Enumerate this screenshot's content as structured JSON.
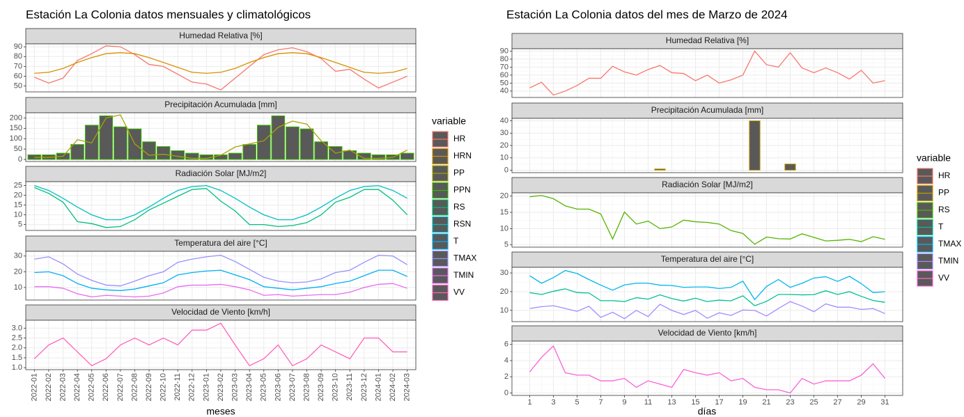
{
  "chart_data": [
    {
      "type": "facet",
      "title": "Estación La Colonia datos mensuales y climatológicos",
      "x_label": "meses",
      "categories": [
        "2022-01",
        "2022-02",
        "2022-03",
        "2022-04",
        "2022-05",
        "2022-06",
        "2022-07",
        "2022-08",
        "2022-09",
        "2022-10",
        "2022-11",
        "2022-12",
        "2023-01",
        "2023-02",
        "2023-03",
        "2023-04",
        "2023-05",
        "2023-06",
        "2023-07",
        "2023-08",
        "2023-09",
        "2023-10",
        "2023-11",
        "2023-12",
        "2024-01",
        "2024-02",
        "2024-03"
      ],
      "legend_title": "variable",
      "legend": [
        {
          "name": "HR",
          "color": "#F8766D"
        },
        {
          "name": "HRN",
          "color": "#D89000"
        },
        {
          "name": "PP",
          "color": "#A3A500"
        },
        {
          "name": "PPN",
          "color": "#39B600"
        },
        {
          "name": "RS",
          "color": "#00BF7D"
        },
        {
          "name": "RSN",
          "color": "#00BFC4"
        },
        {
          "name": "T",
          "color": "#00B0F6"
        },
        {
          "name": "TMAX",
          "color": "#9590FF"
        },
        {
          "name": "TMIN",
          "color": "#E76BF3"
        },
        {
          "name": "VV",
          "color": "#FF62BC"
        }
      ],
      "facets": [
        {
          "title": "Humedad Relativa [%]",
          "ylim": [
            44,
            93
          ],
          "yticks": [
            50,
            60,
            70,
            80,
            90
          ],
          "series": [
            {
              "name": "HR",
              "type": "line",
              "color": "#F8766D",
              "values": [
                59,
                53,
                58,
                76,
                83,
                91,
                90,
                82,
                72,
                70,
                62,
                54,
                52,
                46,
                58,
                70,
                82,
                87,
                89,
                85,
                78,
                65,
                67,
                57,
                48,
                54,
                60
              ]
            },
            {
              "name": "HRN",
              "type": "line",
              "color": "#D89000",
              "values": [
                63,
                64,
                68,
                74,
                79,
                83,
                84,
                83,
                79,
                74,
                69,
                64,
                63,
                64,
                68,
                74,
                79,
                83,
                84,
                83,
                79,
                74,
                69,
                64,
                63,
                64,
                68
              ]
            }
          ]
        },
        {
          "title": "Precipitación Acumulada [mm]",
          "ylim": [
            -10,
            225
          ],
          "yticks": [
            0,
            50,
            100,
            150,
            200
          ],
          "series": [
            {
              "name": "PPN",
              "type": "bar",
              "color": "#39B600",
              "fill": "#595959",
              "values": [
                22,
                22,
                30,
                72,
                165,
                210,
                157,
                147,
                85,
                62,
                42,
                30,
                22,
                22,
                30,
                72,
                165,
                210,
                157,
                147,
                85,
                62,
                42,
                30,
                22,
                22,
                30
              ]
            },
            {
              "name": "PP",
              "type": "line",
              "color": "#A3A500",
              "values": [
                10,
                10,
                15,
                95,
                80,
                200,
                215,
                75,
                20,
                25,
                15,
                5,
                5,
                20,
                60,
                75,
                90,
                155,
                185,
                170,
                90,
                30,
                45,
                5,
                5,
                10,
                45
              ]
            }
          ]
        },
        {
          "title": "Radiación Solar [MJ/m2]",
          "ylim": [
            2,
            27
          ],
          "yticks": [
            5,
            10,
            15,
            20,
            25
          ],
          "series": [
            {
              "name": "RS",
              "type": "line",
              "color": "#00BF7D",
              "values": [
                24,
                21,
                16.5,
                6.5,
                5.5,
                3.5,
                4,
                7.5,
                12.5,
                16,
                19.5,
                23,
                23.5,
                17,
                12,
                5,
                5,
                4,
                4.5,
                6,
                10,
                16.5,
                19,
                23,
                23,
                17.5,
                10
              ]
            },
            {
              "name": "RSN",
              "type": "line",
              "color": "#00BFC4",
              "values": [
                25,
                22.5,
                18.5,
                14,
                10,
                7.5,
                7.5,
                10,
                14,
                18.5,
                22.5,
                24.5,
                25,
                22.5,
                18.5,
                14,
                10,
                7.5,
                7.5,
                10,
                14,
                18.5,
                22.5,
                24.5,
                25,
                22.5,
                18.5
              ]
            }
          ]
        },
        {
          "title": "Temperatura del aire [°C]",
          "ylim": [
            2,
            33
          ],
          "yticks": [
            10,
            20,
            30
          ],
          "series": [
            {
              "name": "T",
              "type": "line",
              "color": "#00B0F6",
              "values": [
                19.5,
                20,
                17.5,
                12.5,
                9.5,
                8.5,
                8,
                9,
                11,
                13,
                18,
                19.5,
                20.5,
                21,
                18,
                15,
                10.5,
                9.5,
                8.5,
                9.5,
                10.5,
                12.5,
                14,
                17.5,
                21,
                21,
                17
              ]
            },
            {
              "name": "TMAX",
              "type": "line",
              "color": "#9590FF",
              "values": [
                28,
                29.5,
                25,
                18.5,
                14.5,
                11.5,
                11,
                14,
                17.5,
                20,
                26,
                28,
                29.5,
                30.5,
                26.5,
                21.5,
                16.5,
                14,
                13,
                13.5,
                15.5,
                19.5,
                21,
                26,
                30.5,
                30,
                24.5
              ]
            },
            {
              "name": "TMIN",
              "type": "line",
              "color": "#E76BF3",
              "values": [
                10.5,
                10.5,
                9.5,
                6,
                4,
                5,
                4.5,
                4,
                4.5,
                6.5,
                10.5,
                11.5,
                11.5,
                12,
                10.5,
                8.5,
                5,
                5.5,
                4.5,
                5,
                5.5,
                5.5,
                7,
                10,
                12,
                12.5,
                9.5
              ]
            }
          ]
        },
        {
          "title": "Velocidad de Viento [km/h]",
          "ylim": [
            0.9,
            3.4
          ],
          "yticks": [
            {
              "value": 1,
              "label": "1.0"
            },
            1.5,
            {
              "value": 2,
              "label": "2.0"
            },
            2.5,
            {
              "value": 3,
              "label": "3.0"
            }
          ],
          "series": [
            {
              "name": "VV",
              "type": "line",
              "color": "#FF62BC",
              "values": [
                1.45,
                2.15,
                2.5,
                1.8,
                1.1,
                1.45,
                2.15,
                2.5,
                2.15,
                2.5,
                2.15,
                2.9,
                2.9,
                3.25,
                2.15,
                1.1,
                1.45,
                2.15,
                1.1,
                1.45,
                2.15,
                1.8,
                1.45,
                2.5,
                2.5,
                1.8,
                1.8
              ]
            }
          ]
        }
      ]
    },
    {
      "type": "facet",
      "title": "Estación La Colonia datos del mes de Marzo de 2024",
      "x_label": "días",
      "x": [
        1,
        2,
        3,
        4,
        5,
        6,
        7,
        8,
        9,
        10,
        11,
        12,
        13,
        14,
        15,
        16,
        17,
        18,
        19,
        20,
        21,
        22,
        23,
        24,
        25,
        26,
        27,
        28,
        29,
        30,
        31
      ],
      "xlim": [
        -0.5,
        32.5
      ],
      "xticks": [
        1,
        3,
        5,
        7,
        9,
        11,
        13,
        15,
        17,
        19,
        21,
        23,
        25,
        27,
        29,
        31
      ],
      "legend_title": "variable",
      "legend": [
        {
          "name": "HR",
          "color": "#F8766D"
        },
        {
          "name": "PP",
          "color": "#C49A00"
        },
        {
          "name": "RS",
          "color": "#53B400"
        },
        {
          "name": "T",
          "color": "#00C094"
        },
        {
          "name": "TMAX",
          "color": "#00B6EB"
        },
        {
          "name": "TMIN",
          "color": "#A58AFF"
        },
        {
          "name": "VV",
          "color": "#FB61D7"
        }
      ],
      "facets": [
        {
          "title": "Humedad Relativa [%]",
          "ylim": [
            32,
            93
          ],
          "yticks": [
            40,
            50,
            60,
            70,
            80,
            90
          ],
          "series": [
            {
              "name": "HR",
              "type": "line",
              "color": "#F8766D",
              "values": [
                44,
                51,
                35,
                40,
                47,
                56,
                56,
                71,
                64,
                60,
                67,
                72,
                63,
                62,
                53,
                60,
                50,
                54,
                60,
                90,
                73,
                70,
                88,
                69,
                63,
                69,
                63,
                55,
                66,
                50,
                53
              ]
            }
          ]
        },
        {
          "title": "Precipitación Acumulada [mm]",
          "ylim": [
            -2,
            42
          ],
          "yticks": [
            0,
            10,
            20,
            30,
            40
          ],
          "series": [
            {
              "name": "PP",
              "type": "bar",
              "color": "#C49A00",
              "fill": "#595959",
              "values": [
                0,
                0,
                0,
                0,
                0,
                0,
                0,
                0,
                0,
                0,
                0,
                1,
                0,
                0,
                0,
                0,
                0,
                0,
                0,
                40,
                0,
                0,
                5,
                0,
                0,
                0,
                0,
                0,
                0,
                0,
                0
              ]
            }
          ]
        },
        {
          "title": "Radiación Solar [MJ/m2]",
          "ylim": [
            4.3,
            21
          ],
          "yticks": [
            5,
            10,
            15,
            20
          ],
          "series": [
            {
              "name": "RS",
              "type": "line",
              "color": "#53B400",
              "values": [
                19.8,
                20.2,
                19.2,
                17,
                16,
                16,
                14.5,
                6.8,
                15.1,
                11.4,
                12.3,
                10,
                10.5,
                12.6,
                12.1,
                11.9,
                11.4,
                9.4,
                8.5,
                5.2,
                7.4,
                6.9,
                6.8,
                8.4,
                7.3,
                6.2,
                6.4,
                6.7,
                6,
                7.5,
                6.7
              ]
            }
          ]
        },
        {
          "title": "Temperatura del aire [°C]",
          "ylim": [
            4,
            33
          ],
          "yticks": [
            10,
            20,
            30
          ],
          "series": [
            {
              "name": "T",
              "type": "line",
              "color": "#00C094",
              "values": [
                19.5,
                18.5,
                20.2,
                21.5,
                19.5,
                19.3,
                15.2,
                15.2,
                14.7,
                16.8,
                16,
                18.3,
                16.3,
                15,
                16.5,
                14.7,
                15.5,
                15.1,
                17.8,
                12.5,
                14.8,
                18.5,
                18.5,
                18.3,
                18.4,
                20.5,
                18.5,
                20,
                17.5,
                15.3,
                14.3
              ]
            },
            {
              "name": "TMAX",
              "type": "line",
              "color": "#00B6EB",
              "values": [
                28.5,
                24.5,
                27.5,
                31.3,
                29.7,
                26.5,
                23.5,
                20.8,
                23.6,
                24.5,
                24.5,
                23.5,
                23.3,
                22.3,
                22.5,
                22.5,
                21.7,
                22.3,
                25.6,
                15.8,
                22.8,
                26.5,
                22.3,
                24.5,
                27.3,
                28,
                25.5,
                28.2,
                24.3,
                19.5,
                20
              ]
            },
            {
              "name": "TMIN",
              "type": "line",
              "color": "#A58AFF",
              "values": [
                11,
                12,
                12.5,
                11,
                9.5,
                12.2,
                6.3,
                9,
                5.6,
                10,
                6.7,
                13.3,
                10,
                7.8,
                10,
                5.8,
                8.7,
                7.3,
                10.2,
                10,
                7,
                11,
                14.7,
                12.3,
                9.3,
                13.5,
                11.7,
                11.7,
                10.5,
                11,
                8.3
              ]
            }
          ]
        },
        {
          "title": "Velocidad de Viento [km/h]",
          "ylim": [
            -0.3,
            6.4
          ],
          "yticks": [
            0,
            2,
            4,
            6
          ],
          "series": [
            {
              "name": "VV",
              "type": "line",
              "color": "#FB61D7",
              "values": [
                2.6,
                4.4,
                5.8,
                2.5,
                2.2,
                2.2,
                1.5,
                1.5,
                1.8,
                0.7,
                1.5,
                1.1,
                0.7,
                2.9,
                2.5,
                2.2,
                2.5,
                1.5,
                1.8,
                0.7,
                0.4,
                0.4,
                0,
                1.8,
                1.1,
                1.5,
                1.5,
                1.5,
                2.2,
                3.6,
                1.8
              ]
            }
          ]
        }
      ]
    }
  ]
}
